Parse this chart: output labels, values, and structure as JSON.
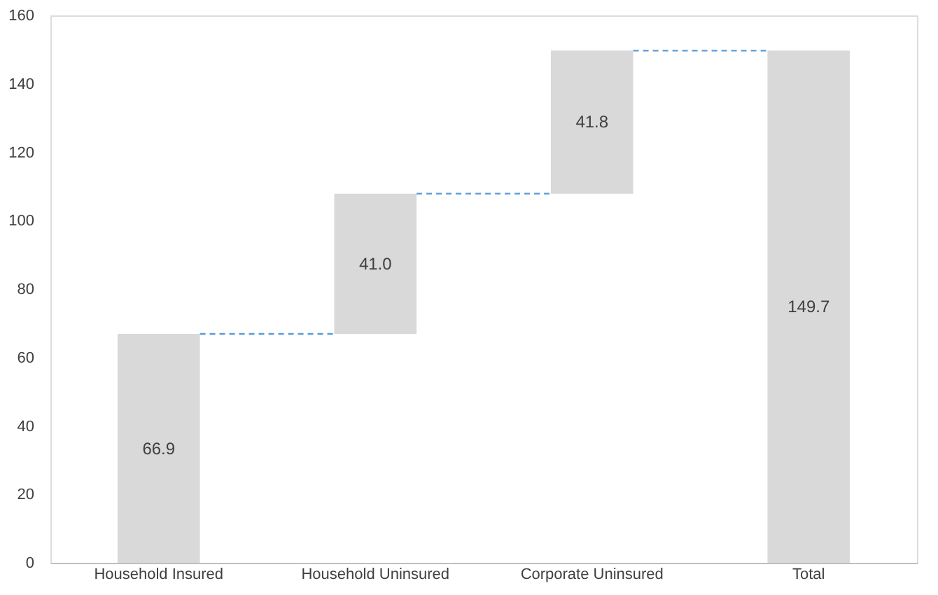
{
  "chart_data": {
    "type": "bar",
    "categories": [
      "Household Insured",
      "Household Uninsured",
      "Corporate Uninsured",
      "Total"
    ],
    "values": [
      66.9,
      41.0,
      41.8,
      149.7
    ],
    "value_labels": [
      "66.9",
      "41.0",
      "41.8",
      "149.7"
    ],
    "base": [
      0,
      66.9,
      107.9,
      0
    ],
    "color": "#d9d9d9",
    "ylim": [
      0,
      160
    ],
    "yticks": [
      0,
      20,
      40,
      60,
      80,
      100,
      120,
      140,
      160
    ],
    "ref_lines": [
      {
        "axis": "y",
        "value": 66.9,
        "line_style": "dashed",
        "color": "#5b9bd5"
      },
      {
        "axis": "y",
        "value": 107.9,
        "line_style": "dashed",
        "color": "#5b9bd5"
      },
      {
        "axis": "y",
        "value": 149.7,
        "line_style": "dashed",
        "color": "#5b9bd5"
      }
    ],
    "grid": false
  }
}
